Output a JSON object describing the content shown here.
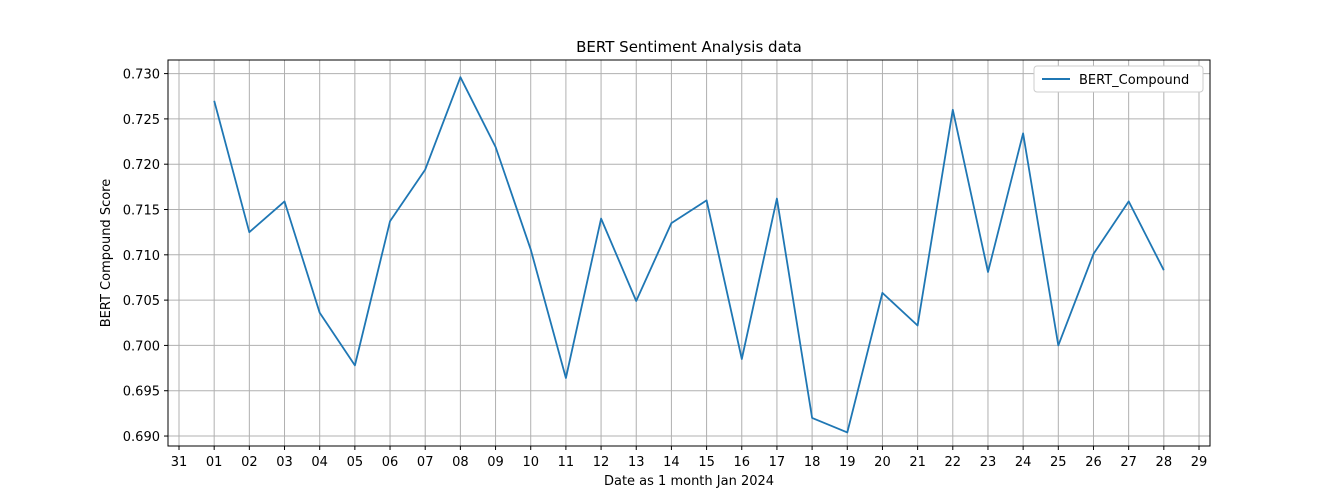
{
  "chart_data": {
    "type": "line",
    "title": "BERT Sentiment Analysis data",
    "xlabel": "Date as 1 month Jan 2024",
    "ylabel": "BERT Compound Score",
    "x_tick_labels": [
      "31",
      "01",
      "02",
      "03",
      "04",
      "05",
      "06",
      "07",
      "08",
      "09",
      "10",
      "11",
      "12",
      "13",
      "14",
      "15",
      "16",
      "17",
      "18",
      "19",
      "20",
      "21",
      "22",
      "23",
      "24",
      "25",
      "26",
      "27",
      "28",
      "29"
    ],
    "x": [
      "2024-01-01",
      "2024-01-02",
      "2024-01-03",
      "2024-01-04",
      "2024-01-05",
      "2024-01-06",
      "2024-01-07",
      "2024-01-08",
      "2024-01-09",
      "2024-01-10",
      "2024-01-11",
      "2024-01-12",
      "2024-01-13",
      "2024-01-14",
      "2024-01-15",
      "2024-01-16",
      "2024-01-17",
      "2024-01-18",
      "2024-01-19",
      "2024-01-20",
      "2024-01-21",
      "2024-01-22",
      "2024-01-23",
      "2024-01-24",
      "2024-01-25",
      "2024-01-26",
      "2024-01-27",
      "2024-01-28"
    ],
    "xlim": [
      "2023-12-31",
      "2024-01-29"
    ],
    "series": [
      {
        "name": "BERT_Compound",
        "color": "#1f77b4",
        "values": [
          0.727,
          0.7125,
          0.7159,
          0.7036,
          0.6978,
          0.7137,
          0.7194,
          0.7296,
          0.7219,
          0.7106,
          0.6964,
          0.714,
          0.7049,
          0.7135,
          0.716,
          0.6985,
          0.7162,
          0.692,
          0.6904,
          0.7058,
          0.7022,
          0.726,
          0.7081,
          0.7234,
          0.7,
          0.7101,
          0.7159,
          0.7083
        ]
      }
    ],
    "y_ticks": [
      "0.690",
      "0.695",
      "0.700",
      "0.705",
      "0.710",
      "0.715",
      "0.720",
      "0.725",
      "0.730"
    ],
    "ylim": [
      0.6889,
      0.7315
    ],
    "grid": true,
    "legend": "top-right"
  }
}
